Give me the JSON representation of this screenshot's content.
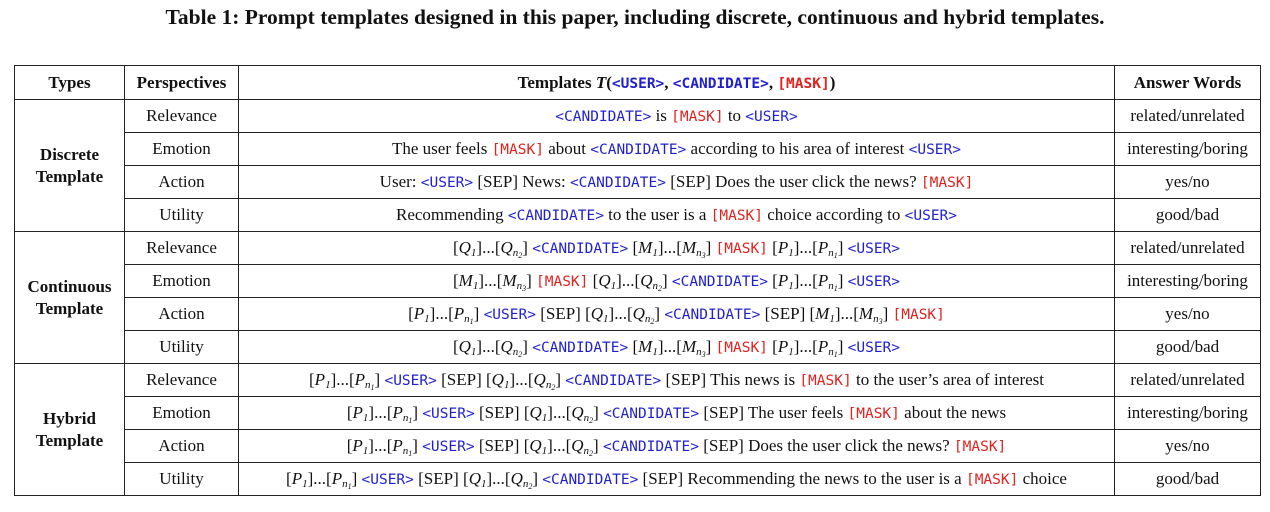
{
  "caption": "Table 1: Prompt templates designed in this paper, including discrete, continuous and hybrid templates.",
  "headers": {
    "types": "Types",
    "perspectives": "Perspectives",
    "templates_prefix": "Templates ",
    "templates_T": "T",
    "open_paren": "(",
    "user": "<USER>",
    "comma1": ", ",
    "candidate": "<CANDIDATE>",
    "comma2": ", ",
    "mask": "[MASK]",
    "close_paren": ")",
    "answer_words": "Answer Words"
  },
  "tokens": {
    "user": "<USER>",
    "candidate": "<CANDIDATE>",
    "mask": "[MASK]",
    "sep": "[SEP]"
  },
  "groups": [
    {
      "type_line1": "Discrete",
      "type_line2": "Template",
      "rows": [
        {
          "perspective": "Relevance",
          "answer": "related/unrelated",
          "template": [
            [
              "c",
              "<CANDIDATE>"
            ],
            [
              "t",
              " is "
            ],
            [
              "m",
              "[MASK]"
            ],
            [
              "t",
              " to "
            ],
            [
              "u",
              "<USER>"
            ]
          ]
        },
        {
          "perspective": "Emotion",
          "answer": "interesting/boring",
          "template": [
            [
              "t",
              "The user feels "
            ],
            [
              "m",
              "[MASK]"
            ],
            [
              "t",
              " about "
            ],
            [
              "c",
              "<CANDIDATE>"
            ],
            [
              "t",
              " according to his area of interest "
            ],
            [
              "u",
              "<USER>"
            ]
          ]
        },
        {
          "perspective": "Action",
          "answer": "yes/no",
          "template": [
            [
              "t",
              "User: "
            ],
            [
              "u",
              "<USER>"
            ],
            [
              "t",
              " [SEP] News: "
            ],
            [
              "c",
              "<CANDIDATE>"
            ],
            [
              "t",
              " [SEP] Does the user click the news? "
            ],
            [
              "m",
              "[MASK]"
            ]
          ]
        },
        {
          "perspective": "Utility",
          "answer": "good/bad",
          "template": [
            [
              "t",
              "Recommending "
            ],
            [
              "c",
              "<CANDIDATE>"
            ],
            [
              "t",
              " to the user is a "
            ],
            [
              "m",
              "[MASK]"
            ],
            [
              "t",
              " choice according to "
            ],
            [
              "u",
              "<USER>"
            ]
          ]
        }
      ]
    },
    {
      "type_line1": "Continuous",
      "type_line2": "Template",
      "rows": [
        {
          "perspective": "Relevance",
          "answer": "related/unrelated",
          "template": [
            [
              "v",
              "Q",
              "1"
            ],
            [
              "t",
              "..."
            ],
            [
              "v",
              "Q",
              "n",
              "2"
            ],
            [
              "t",
              " "
            ],
            [
              "c",
              "<CANDIDATE>"
            ],
            [
              "t",
              " "
            ],
            [
              "v",
              "M",
              "1"
            ],
            [
              "t",
              "..."
            ],
            [
              "v",
              "M",
              "n",
              "3"
            ],
            [
              "t",
              " "
            ],
            [
              "m",
              "[MASK]"
            ],
            [
              "t",
              " "
            ],
            [
              "v",
              "P",
              "1"
            ],
            [
              "t",
              "..."
            ],
            [
              "v",
              "P",
              "n",
              "1"
            ],
            [
              "t",
              " "
            ],
            [
              "u",
              "<USER>"
            ]
          ]
        },
        {
          "perspective": "Emotion",
          "answer": "interesting/boring",
          "template": [
            [
              "v",
              "M",
              "1"
            ],
            [
              "t",
              "..."
            ],
            [
              "v",
              "M",
              "n",
              "3"
            ],
            [
              "t",
              " "
            ],
            [
              "m",
              "[MASK]"
            ],
            [
              "t",
              " "
            ],
            [
              "v",
              "Q",
              "1"
            ],
            [
              "t",
              "..."
            ],
            [
              "v",
              "Q",
              "n",
              "2"
            ],
            [
              "t",
              " "
            ],
            [
              "c",
              "<CANDIDATE>"
            ],
            [
              "t",
              " "
            ],
            [
              "v",
              "P",
              "1"
            ],
            [
              "t",
              "..."
            ],
            [
              "v",
              "P",
              "n",
              "1"
            ],
            [
              "t",
              " "
            ],
            [
              "u",
              "<USER>"
            ]
          ]
        },
        {
          "perspective": "Action",
          "answer": "yes/no",
          "template": [
            [
              "v",
              "P",
              "1"
            ],
            [
              "t",
              "..."
            ],
            [
              "v",
              "P",
              "n",
              "1"
            ],
            [
              "t",
              " "
            ],
            [
              "u",
              "<USER>"
            ],
            [
              "t",
              " [SEP] "
            ],
            [
              "v",
              "Q",
              "1"
            ],
            [
              "t",
              "..."
            ],
            [
              "v",
              "Q",
              "n",
              "2"
            ],
            [
              "t",
              " "
            ],
            [
              "c",
              "<CANDIDATE>"
            ],
            [
              "t",
              " [SEP] "
            ],
            [
              "v",
              "M",
              "1"
            ],
            [
              "t",
              "..."
            ],
            [
              "v",
              "M",
              "n",
              "3"
            ],
            [
              "t",
              " "
            ],
            [
              "m",
              "[MASK]"
            ]
          ]
        },
        {
          "perspective": "Utility",
          "answer": "good/bad",
          "template": [
            [
              "v",
              "Q",
              "1"
            ],
            [
              "t",
              "..."
            ],
            [
              "v",
              "Q",
              "n",
              "2"
            ],
            [
              "t",
              " "
            ],
            [
              "c",
              "<CANDIDATE>"
            ],
            [
              "t",
              " "
            ],
            [
              "v",
              "M",
              "1"
            ],
            [
              "t",
              "..."
            ],
            [
              "v",
              "M",
              "n",
              "3"
            ],
            [
              "t",
              " "
            ],
            [
              "m",
              "[MASK]"
            ],
            [
              "t",
              " "
            ],
            [
              "v",
              "P",
              "1"
            ],
            [
              "t",
              "..."
            ],
            [
              "v",
              "P",
              "n",
              "1"
            ],
            [
              "t",
              " "
            ],
            [
              "u",
              "<USER>"
            ]
          ]
        }
      ]
    },
    {
      "type_line1": "Hybrid",
      "type_line2": "Template",
      "rows": [
        {
          "perspective": "Relevance",
          "answer": "related/unrelated",
          "template": [
            [
              "v",
              "P",
              "1"
            ],
            [
              "t",
              "..."
            ],
            [
              "v",
              "P",
              "n",
              "1"
            ],
            [
              "t",
              " "
            ],
            [
              "u",
              "<USER>"
            ],
            [
              "t",
              " [SEP] "
            ],
            [
              "v",
              "Q",
              "1"
            ],
            [
              "t",
              "..."
            ],
            [
              "v",
              "Q",
              "n",
              "2"
            ],
            [
              "t",
              " "
            ],
            [
              "c",
              "<CANDIDATE>"
            ],
            [
              "t",
              " [SEP] This news is "
            ],
            [
              "m",
              "[MASK]"
            ],
            [
              "t",
              " to the user’s area of interest"
            ]
          ]
        },
        {
          "perspective": "Emotion",
          "answer": "interesting/boring",
          "template": [
            [
              "v",
              "P",
              "1"
            ],
            [
              "t",
              "..."
            ],
            [
              "v",
              "P",
              "n",
              "1"
            ],
            [
              "t",
              " "
            ],
            [
              "u",
              "<USER>"
            ],
            [
              "t",
              " [SEP] "
            ],
            [
              "v",
              "Q",
              "1"
            ],
            [
              "t",
              "..."
            ],
            [
              "v",
              "Q",
              "n",
              "2"
            ],
            [
              "t",
              " "
            ],
            [
              "c",
              "<CANDIDATE>"
            ],
            [
              "t",
              " [SEP] The user feels "
            ],
            [
              "m",
              "[MASK]"
            ],
            [
              "t",
              " about the news"
            ]
          ]
        },
        {
          "perspective": "Action",
          "answer": "yes/no",
          "template": [
            [
              "v",
              "P",
              "1"
            ],
            [
              "t",
              "..."
            ],
            [
              "v",
              "P",
              "n",
              "1"
            ],
            [
              "t",
              " "
            ],
            [
              "u",
              "<USER>"
            ],
            [
              "t",
              " [SEP] "
            ],
            [
              "v",
              "Q",
              "1"
            ],
            [
              "t",
              "..."
            ],
            [
              "v",
              "Q",
              "n",
              "2"
            ],
            [
              "t",
              " "
            ],
            [
              "c",
              "<CANDIDATE>"
            ],
            [
              "t",
              " [SEP] Does the user click the news? "
            ],
            [
              "m",
              "[MASK]"
            ]
          ]
        },
        {
          "perspective": "Utility",
          "answer": "good/bad",
          "template": [
            [
              "v",
              "P",
              "1"
            ],
            [
              "t",
              "..."
            ],
            [
              "v",
              "P",
              "n",
              "1"
            ],
            [
              "t",
              " "
            ],
            [
              "u",
              "<USER>"
            ],
            [
              "t",
              " [SEP] "
            ],
            [
              "v",
              "Q",
              "1"
            ],
            [
              "t",
              "..."
            ],
            [
              "v",
              "Q",
              "n",
              "2"
            ],
            [
              "t",
              " "
            ],
            [
              "c",
              "<CANDIDATE>"
            ],
            [
              "t",
              " [SEP] Recommending the news to the user is a "
            ],
            [
              "m",
              "[MASK]"
            ],
            [
              "t",
              " choice"
            ]
          ]
        }
      ]
    }
  ],
  "colors": {
    "user": "#1f1fd0",
    "candidate": "#1f1fd0",
    "mask": "#e0221f"
  }
}
